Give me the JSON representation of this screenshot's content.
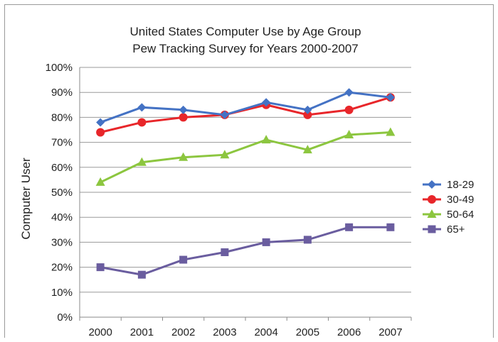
{
  "chart_data": {
    "type": "line",
    "title": "United States Computer Use by Age Group",
    "subtitle": "Pew Tracking Survey for Years 2000-2007",
    "xlabel": "",
    "ylabel": "Computer User",
    "x": [
      "2000",
      "2001",
      "2002",
      "2003",
      "2004",
      "2005",
      "2006",
      "2007"
    ],
    "ylim": [
      0,
      100
    ],
    "yticks": [
      "0%",
      "10%",
      "20%",
      "30%",
      "40%",
      "50%",
      "60%",
      "70%",
      "80%",
      "90%",
      "100%"
    ],
    "grid": true,
    "legend_position": "right",
    "series": [
      {
        "name": "18-29",
        "color": "#4472c4",
        "marker": "diamond",
        "values": [
          78,
          84,
          83,
          81,
          86,
          83,
          90,
          88
        ]
      },
      {
        "name": "30-49",
        "color": "#e8262a",
        "marker": "circle",
        "values": [
          74,
          78,
          80,
          81,
          85,
          81,
          83,
          88
        ]
      },
      {
        "name": "50-64",
        "color": "#8cc63f",
        "marker": "triangle",
        "values": [
          54,
          62,
          64,
          65,
          71,
          67,
          73,
          74
        ]
      },
      {
        "name": "65+",
        "color": "#6a5d9f",
        "marker": "square",
        "values": [
          20,
          17,
          23,
          26,
          30,
          31,
          36,
          36
        ]
      }
    ]
  }
}
